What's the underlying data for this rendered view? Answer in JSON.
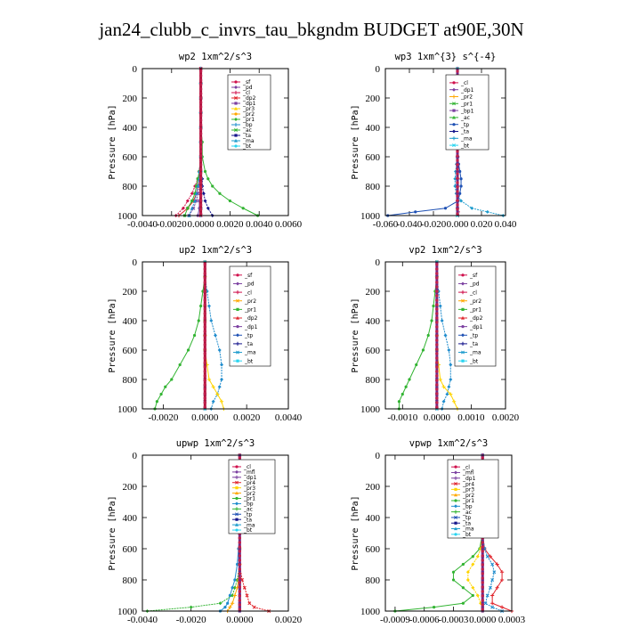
{
  "figure": {
    "title": "jan24_clubb_c_invrs_tau_bkgndm  BUDGET at90E,30N"
  },
  "palette": {
    "sf": "#d0104c",
    "pd": "#7b3fa0",
    "cl": "#d0104c",
    "dp1": "#7b3fa0",
    "dp2": "#e0242c",
    "pr1": "#32b432",
    "pr2": "#ffa800",
    "pr3": "#ffd400",
    "pr4": "#e0242c",
    "bp": "#1e8ccd",
    "ac": "#32b432",
    "tp": "#1e50b4",
    "ta": "#14148c",
    "ma": "#1e9ccd",
    "bt": "#28d4f0",
    "mfl": "#7b3fa0"
  },
  "chart_data": [
    {
      "type": "line",
      "title": "wp2  1xm^2/s^3",
      "ylabel": "Pressure [hPa]",
      "xlim": [
        -0.004,
        0.006
      ],
      "ylim": [
        1000,
        0
      ],
      "xticks": [
        "-0.0040",
        "-0.0020",
        "0.0000",
        "0.0020",
        "0.0040",
        "0.0060"
      ],
      "yticks": [
        "0",
        "200",
        "400",
        "600",
        "800",
        "1000"
      ],
      "levels": [
        0,
        100,
        200,
        300,
        400,
        500,
        600,
        700,
        750,
        800,
        850,
        900,
        950,
        1000
      ],
      "legend": [
        "_sf",
        "_pd",
        "_cl",
        "_dp2",
        "_dp1",
        "_pr3",
        "_pr2",
        "_pr1",
        "_bp",
        "_ac",
        "_ta",
        "_ma",
        "_bt"
      ],
      "series": [
        {
          "name": "_pd",
          "color": "pd",
          "values": [
            0,
            0,
            0,
            0,
            0,
            0,
            0,
            0,
            0,
            0,
            0,
            -0.0001,
            -0.0001,
            -0.0002
          ]
        },
        {
          "name": "_cl",
          "color": "cl",
          "values": [
            0,
            0,
            0,
            0,
            0,
            0,
            0,
            -0.0001,
            -0.0002,
            -0.0004,
            -0.0006,
            -0.0009,
            -0.0012,
            -0.0017
          ]
        },
        {
          "name": "_dp2",
          "color": "dp2",
          "values": [
            0,
            0,
            0,
            0,
            0,
            0,
            0,
            -0.0001,
            -0.0001,
            -0.0002,
            -0.0003,
            -0.0005,
            -0.0009,
            -0.0015
          ]
        },
        {
          "name": "_dp1",
          "color": "dp1",
          "values": [
            0,
            0,
            0,
            0,
            0,
            0,
            0,
            0,
            -0.0001,
            -0.0001,
            -0.0002,
            -0.0003,
            -0.0005,
            -0.0008
          ]
        },
        {
          "name": "_pr1",
          "color": "pr1",
          "values": [
            0,
            0,
            0,
            0,
            0,
            0,
            0,
            -0.0001,
            -0.0002,
            -0.0003,
            -0.0004,
            -0.0006,
            -0.0009,
            -0.0011
          ]
        },
        {
          "name": "_bp",
          "color": "bp",
          "values": [
            0,
            0,
            0,
            0,
            0,
            0,
            0,
            -0.0001,
            -0.0001,
            -0.0002,
            -0.0003,
            -0.0004,
            -0.0006,
            -0.0008
          ]
        },
        {
          "name": "_ac",
          "color": "ac",
          "values": [
            0,
            0,
            0,
            0,
            0,
            0.0001,
            0.0001,
            0.0003,
            0.0005,
            0.0008,
            0.0013,
            0.002,
            0.0029,
            0.0039
          ]
        },
        {
          "name": "_ta",
          "color": "ta",
          "values": [
            0,
            0,
            0,
            0,
            0,
            0,
            0,
            0,
            0.0001,
            0.0001,
            0.0002,
            0.0003,
            0.0005,
            0.0008
          ]
        },
        {
          "name": "_bt",
          "color": "bt",
          "values": [
            0,
            0,
            0,
            0,
            0,
            0,
            0,
            0,
            0,
            0,
            0,
            0,
            0,
            0
          ]
        },
        {
          "name": "_sf",
          "color": "sf",
          "values": [
            0,
            0,
            0,
            0,
            0,
            0,
            0,
            0,
            0,
            0,
            0,
            0,
            0,
            0
          ]
        }
      ]
    },
    {
      "type": "line",
      "title": "wp3  1xm^{3} s^{-4}",
      "ylabel": "Pressure [hPa]",
      "xlim": [
        -0.06,
        0.04
      ],
      "ylim": [
        1000,
        0
      ],
      "xticks": [
        "-0.060",
        "-0.040",
        "-0.020",
        "0.000",
        "0.020",
        "0.040"
      ],
      "yticks": [
        "0",
        "200",
        "400",
        "600",
        "800",
        "1000"
      ],
      "levels": [
        0,
        100,
        200,
        300,
        400,
        500,
        600,
        650,
        700,
        750,
        800,
        850,
        900,
        950,
        975,
        1000
      ],
      "legend": [
        "_cl",
        "_dp1",
        "_pr2",
        "_pr1",
        "_bp1",
        "_ac",
        "_tp",
        "_ta",
        "_ma",
        "_bt"
      ],
      "series": [
        {
          "name": "_tp",
          "color": "tp",
          "values": [
            0,
            0,
            0,
            0,
            0,
            0,
            0.0005,
            0.001,
            0.002,
            0.003,
            0.003,
            0.002,
            0.0005,
            -0.01,
            -0.035,
            -0.058
          ]
        },
        {
          "name": "_ma",
          "color": "ma",
          "values": [
            0,
            0,
            0,
            0,
            0,
            0,
            -0.0003,
            -0.0008,
            -0.0015,
            -0.002,
            -0.002,
            -0.001,
            0.003,
            0.012,
            0.025,
            0.038
          ]
        },
        {
          "name": "_cl",
          "color": "cl",
          "values": [
            0,
            0,
            0,
            0,
            0,
            0,
            0,
            0,
            0,
            0,
            0,
            0,
            0,
            0,
            0.0005,
            0.001
          ]
        },
        {
          "name": "_bt",
          "color": "bt",
          "values": [
            0,
            0,
            0,
            0,
            0,
            0,
            0,
            0,
            0,
            0,
            0,
            0,
            0,
            0,
            0,
            0
          ]
        }
      ]
    },
    {
      "type": "line",
      "title": "up2  1xm^2/s^3",
      "ylabel": "Pressure [hPa]",
      "xlim": [
        -0.003,
        0.004
      ],
      "ylim": [
        1000,
        0
      ],
      "xticks": [
        "-0.0020",
        "0.0000",
        "0.0020",
        "0.0040"
      ],
      "xtickvals": [
        -0.002,
        0,
        0.002,
        0.004
      ],
      "yticks": [
        "0",
        "200",
        "400",
        "600",
        "800",
        "1000"
      ],
      "levels": [
        0,
        100,
        200,
        300,
        400,
        500,
        600,
        700,
        800,
        850,
        900,
        950,
        1000
      ],
      "legend": [
        "_sf",
        "_pd",
        "_cl",
        "_pr2",
        "_pr1",
        "_dp2",
        "_dp1",
        "_tp",
        "_ta",
        "_ma",
        "_bt"
      ],
      "series": [
        {
          "name": "_dp1",
          "color": "ac",
          "values": [
            0,
            0,
            -0.0001,
            -0.0002,
            -0.0003,
            -0.0005,
            -0.0008,
            -0.0012,
            -0.0016,
            -0.0019,
            -0.0021,
            -0.0023,
            -0.0024
          ]
        },
        {
          "name": "_tp",
          "color": "bp",
          "values": [
            0,
            0,
            0.0001,
            0.0002,
            0.0003,
            0.0005,
            0.0007,
            0.0008,
            0.0008,
            0.0007,
            0.0006,
            0.0004,
            0.0003
          ]
        },
        {
          "name": "_pr1",
          "color": "pr3",
          "values": [
            0,
            0,
            0,
            0,
            0,
            0,
            0,
            0.0001,
            0.0002,
            0.0004,
            0.0006,
            0.0008,
            0.0009
          ]
        },
        {
          "name": "_sf",
          "color": "sf",
          "values": [
            0,
            0,
            0,
            0,
            0,
            0,
            0,
            0,
            0,
            0,
            0,
            0,
            0
          ]
        },
        {
          "name": "_bt",
          "color": "bt",
          "values": [
            0,
            0,
            0,
            0,
            0,
            0,
            0,
            0,
            0,
            0,
            0,
            0,
            0
          ]
        }
      ]
    },
    {
      "type": "line",
      "title": "vp2  1xm^2/s^3",
      "ylabel": "Pressure [hPa]",
      "xlim": [
        -0.0015,
        0.002
      ],
      "ylim": [
        1000,
        0
      ],
      "xticks": [
        "-0.0010",
        "0.0000",
        "0.0010",
        "0.0020"
      ],
      "xtickvals": [
        -0.001,
        0,
        0.001,
        0.002
      ],
      "yticks": [
        "0",
        "200",
        "400",
        "600",
        "800",
        "1000"
      ],
      "levels": [
        0,
        100,
        200,
        300,
        400,
        500,
        600,
        700,
        800,
        850,
        900,
        950,
        1000
      ],
      "legend": [
        "_sf",
        "_pd",
        "_cl",
        "_pr2",
        "_pr1",
        "_dp2",
        "_dp1",
        "_tp",
        "_ta",
        "_ma",
        "_bt"
      ],
      "series": [
        {
          "name": "_dp1",
          "color": "ac",
          "values": [
            0,
            0,
            -5e-05,
            -0.0001,
            -0.00015,
            -0.00025,
            -0.0004,
            -0.0006,
            -0.0008,
            -0.0009,
            -0.001,
            -0.0011,
            -0.0011
          ]
        },
        {
          "name": "_tp",
          "color": "bp",
          "values": [
            0,
            0,
            5e-05,
            0.0001,
            0.00015,
            0.00025,
            0.00035,
            0.0004,
            0.0004,
            0.00035,
            0.0003,
            0.0002,
            0.00015
          ]
        },
        {
          "name": "_pr1",
          "color": "pr3",
          "values": [
            0,
            0,
            0,
            0,
            0,
            0,
            0,
            5e-05,
            0.0001,
            0.0002,
            0.0004,
            0.0005,
            0.0006
          ]
        },
        {
          "name": "_sf",
          "color": "sf",
          "values": [
            0,
            0,
            0,
            0,
            0,
            0,
            0,
            0,
            0,
            0,
            0,
            0,
            0
          ]
        },
        {
          "name": "_bt",
          "color": "bt",
          "values": [
            0,
            0,
            0,
            0,
            0,
            0,
            0,
            0,
            0,
            0,
            0,
            0,
            0
          ]
        }
      ]
    },
    {
      "type": "line",
      "title": "upwp  1xm^2/s^3",
      "ylabel": "Pressure [hPa]",
      "xlim": [
        -0.004,
        0.002
      ],
      "ylim": [
        1000,
        0
      ],
      "xticks": [
        "-0.0040",
        "-0.0020",
        "0.0000",
        "0.0020"
      ],
      "xtickvals": [
        -0.004,
        -0.002,
        0,
        0.002
      ],
      "yticks": [
        "0",
        "200",
        "400",
        "600",
        "800",
        "1000"
      ],
      "levels": [
        0,
        100,
        200,
        300,
        400,
        500,
        600,
        700,
        800,
        850,
        900,
        950,
        975,
        1000
      ],
      "legend": [
        "_cl",
        "_mfl",
        "_dp1",
        "_pr4",
        "_pr3",
        "_pr2",
        "_pr1",
        "_bp",
        "_ac",
        "_tp",
        "_ta",
        "_ma",
        "_bt"
      ],
      "series": [
        {
          "name": "_bp",
          "color": "bp",
          "values": [
            0,
            0,
            0,
            0,
            0,
            0,
            -5e-05,
            -0.0001,
            -0.0002,
            -0.0003,
            -0.0004,
            -0.0005,
            -0.0006,
            -0.0008
          ]
        },
        {
          "name": "_ac",
          "color": "ac",
          "values": [
            0,
            0,
            0,
            0,
            0,
            0,
            0,
            0,
            -0.0001,
            -0.0002,
            -0.0003,
            -0.0008,
            -0.002,
            -0.0038
          ]
        },
        {
          "name": "_pr1",
          "color": "pr2",
          "values": [
            0,
            0,
            0,
            0,
            0,
            0,
            0,
            0,
            -5e-05,
            -0.0001,
            -0.0002,
            -0.0003,
            -0.0004,
            -0.0005
          ]
        },
        {
          "name": "_dp1",
          "color": "pr4",
          "values": [
            0,
            0,
            0,
            0,
            0,
            0,
            0,
            0,
            0.0001,
            0.0002,
            0.0003,
            0.0004,
            0.0006,
            0.0012
          ]
        },
        {
          "name": "_cl",
          "color": "dp1",
          "values": [
            0,
            0,
            0,
            0,
            0,
            0,
            0,
            0,
            0,
            0,
            0,
            0,
            0,
            0
          ]
        }
      ]
    },
    {
      "type": "line",
      "title": "vpwp  1xm^2/s^3",
      "ylabel": "Pressure [hPa]",
      "xlim": [
        -0.001,
        0.0003
      ],
      "ylim": [
        1000,
        0
      ],
      "xticks": [
        "-0.0009",
        "-0.0006",
        "-0.0003",
        "0.0000",
        "0.0003"
      ],
      "xtickvals": [
        -0.0009,
        -0.0006,
        -0.0003,
        0,
        0.0003
      ],
      "yticks": [
        "0",
        "200",
        "400",
        "600",
        "800",
        "1000"
      ],
      "levels": [
        0,
        100,
        200,
        300,
        400,
        500,
        600,
        650,
        700,
        750,
        800,
        850,
        900,
        950,
        975,
        1000
      ],
      "legend": [
        "_cl",
        "_mfl",
        "_dp1",
        "_pr4",
        "_pr3",
        "_pr2",
        "_pr1",
        "_bp",
        "_ac",
        "_tp",
        "_ta",
        "_ma",
        "_bt"
      ],
      "series": [
        {
          "name": "_ac",
          "color": "ac",
          "values": [
            0,
            0,
            0,
            0,
            0,
            0,
            -3e-05,
            -0.0001,
            -0.0002,
            -0.0003,
            -0.0003,
            -0.0002,
            -0.0001,
            -0.0002,
            -0.0005,
            -0.0009
          ]
        },
        {
          "name": "_pr2",
          "color": "pr3",
          "values": [
            0,
            0,
            0,
            0,
            0,
            0,
            -2e-05,
            -5e-05,
            -0.0001,
            -0.00015,
            -0.00015,
            -0.0001,
            -5e-05,
            -2e-05,
            0,
            0
          ]
        },
        {
          "name": "_dp1",
          "color": "pr4",
          "values": [
            0,
            0,
            0,
            0,
            0,
            0,
            2e-05,
            8e-05,
            0.00015,
            0.0002,
            0.0002,
            0.00015,
            0.0001,
            0.0001,
            0.0002,
            0.0003
          ]
        },
        {
          "name": "_bp",
          "color": "bp",
          "values": [
            0,
            0,
            0,
            0,
            0,
            0,
            2e-05,
            5e-05,
            0.0001,
            0.00012,
            0.0001,
            8e-05,
            5e-05,
            3e-05,
            0.0001,
            0.0002
          ]
        },
        {
          "name": "_cl",
          "color": "dp1",
          "values": [
            0,
            0,
            0,
            0,
            0,
            0,
            0,
            0,
            0,
            0,
            0,
            0,
            0,
            0,
            0,
            0
          ]
        }
      ]
    }
  ]
}
